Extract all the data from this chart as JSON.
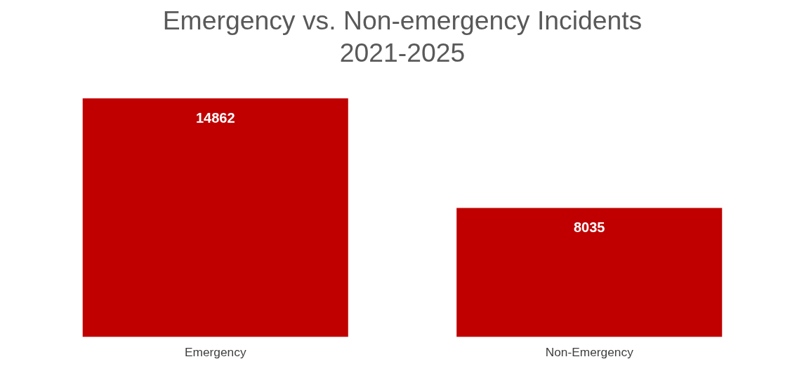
{
  "chart_data": {
    "type": "bar",
    "title": "Emergency vs. Non-emergency Incidents",
    "subtitle": "2021-2025",
    "categories": [
      "Emergency",
      "Non-Emergency"
    ],
    "series": [
      {
        "color": "#c00000",
        "values": [
          14862,
          8035
        ]
      }
    ],
    "data_labels": true,
    "grid": false
  }
}
